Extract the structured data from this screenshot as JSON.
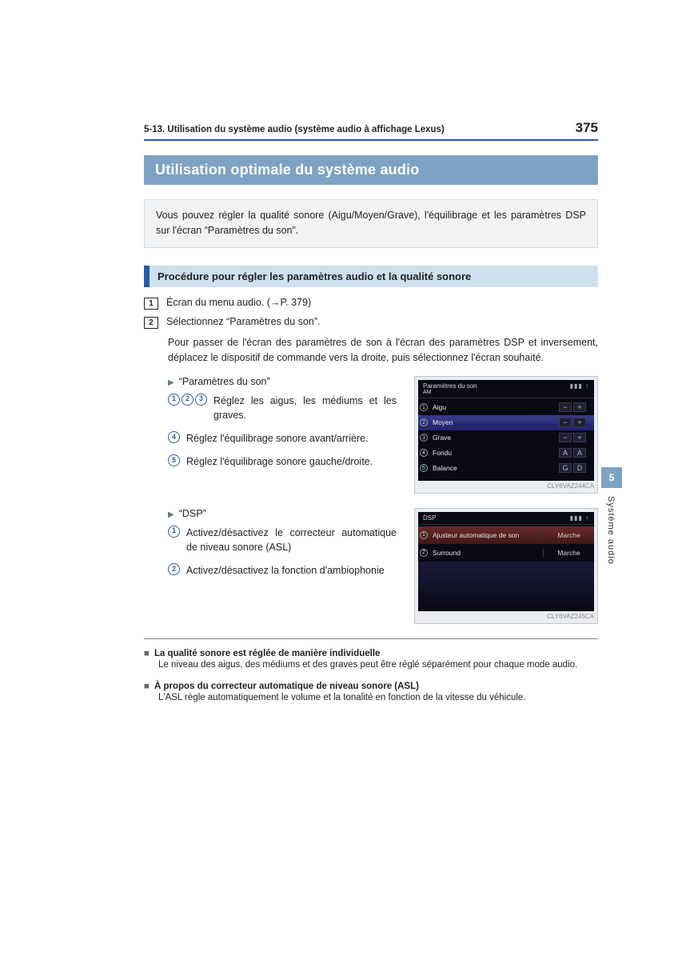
{
  "header": {
    "section_ref": "5-13. Utilisation du système audio (système audio à affichage Lexus)",
    "page_number": "375"
  },
  "title": "Utilisation optimale du système audio",
  "intro": "Vous pouvez régler la qualité sonore (Aigu/Moyen/Grave), l'équilibrage et les paramètres DSP sur l'écran “Paramètres du son”.",
  "subheading": "Procédure pour régler les paramètres audio et la qualité sonore",
  "steps": [
    {
      "num": "1",
      "text": "Écran du menu audio. (→P. 379)"
    },
    {
      "num": "2",
      "text": "Sélectionnez “Paramètres du son”."
    }
  ],
  "transition_para": "Pour passer de l'écran des paramètres de son à l'écran des paramètres DSP et inversement, déplacez le dispositif de commande vers la droite, puis sélectionnez l'écran souhaité.",
  "section1": {
    "label": "“Paramètres du son”",
    "items": [
      {
        "nums": [
          "1",
          "2",
          "3"
        ],
        "text": "Réglez les aigus, les médiums et les graves."
      },
      {
        "nums": [
          "4"
        ],
        "text": "Réglez l'équilibrage sonore avant/arrière."
      },
      {
        "nums": [
          "5"
        ],
        "text": "Réglez l'équilibrage sonore gauche/droite."
      }
    ],
    "screenshot": {
      "title_left": "Paramètres du son",
      "title_sub": "AM",
      "rows": [
        {
          "n": "1",
          "label": "Aigu",
          "minus": "−",
          "plus": "+",
          "hl": false
        },
        {
          "n": "2",
          "label": "Moyen",
          "minus": "−",
          "plus": "+",
          "hl": true
        },
        {
          "n": "3",
          "label": "Grave",
          "minus": "−",
          "plus": "+",
          "hl": false
        },
        {
          "n": "4",
          "label": "Fondu",
          "minus": "A",
          "plus": "A",
          "hl": false
        },
        {
          "n": "5",
          "label": "Balance",
          "minus": "G",
          "plus": "D",
          "hl": false
        }
      ],
      "caption": "CLY6VAZ244CA"
    }
  },
  "section2": {
    "label": "“DSP”",
    "items": [
      {
        "nums": [
          "1"
        ],
        "text": "Activez/désactivez le correcteur automatique de niveau sonore (ASL)"
      },
      {
        "nums": [
          "2"
        ],
        "text": "Activez/désactivez la fonction d'ambiophonie"
      }
    ],
    "screenshot": {
      "title_left": "DSP",
      "rows": [
        {
          "n": "1",
          "label": "Ajusteur automatique de son",
          "value": "Marche",
          "hl": true
        },
        {
          "n": "2",
          "label": "Surround",
          "value": "Marche",
          "hl": false
        }
      ],
      "caption": "CLY6VAZ245CA"
    }
  },
  "side_tab": {
    "num": "5",
    "label": "Système audio"
  },
  "notes": [
    {
      "title": "La qualité sonore est réglée de manière individuelle",
      "body": "Le niveau des aigus, des médiums et des graves peut être réglé séparément pour chaque mode audio."
    },
    {
      "title": "À propos du correcteur automatique de niveau sonore (ASL)",
      "body": "L'ASL règle automatiquement le volume et la tonalité en fonction de la vitesse du véhicule."
    }
  ],
  "icons": {
    "signal": "▮▮▮ ↑"
  }
}
